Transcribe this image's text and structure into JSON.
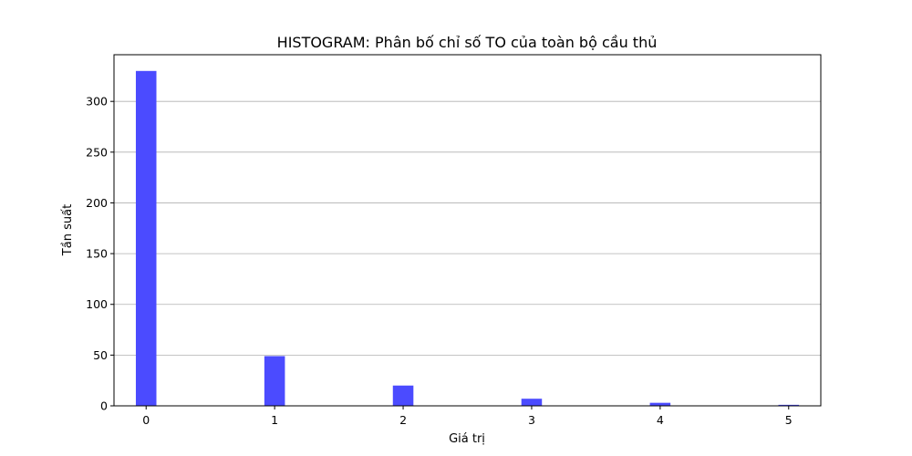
{
  "chart_data": {
    "type": "bar",
    "title": "HISTOGRAM: Phân bố chỉ số TO của toàn bộ cầu thủ",
    "xlabel": "Giá trị",
    "ylabel": "Tần suất",
    "categories": [
      "0",
      "1",
      "2",
      "3",
      "4",
      "5"
    ],
    "x": [
      0,
      1,
      2,
      3,
      4,
      5
    ],
    "values": [
      330,
      49,
      20,
      7,
      3,
      1
    ],
    "xlim": [
      -0.25,
      5.25
    ],
    "ylim": [
      0,
      346
    ],
    "x_ticks": [
      "0",
      "1",
      "2",
      "3",
      "4",
      "5"
    ],
    "y_ticks": [
      "0",
      "50",
      "100",
      "150",
      "200",
      "250",
      "300"
    ],
    "grid": "y",
    "bar_color": "#4b4bff"
  }
}
